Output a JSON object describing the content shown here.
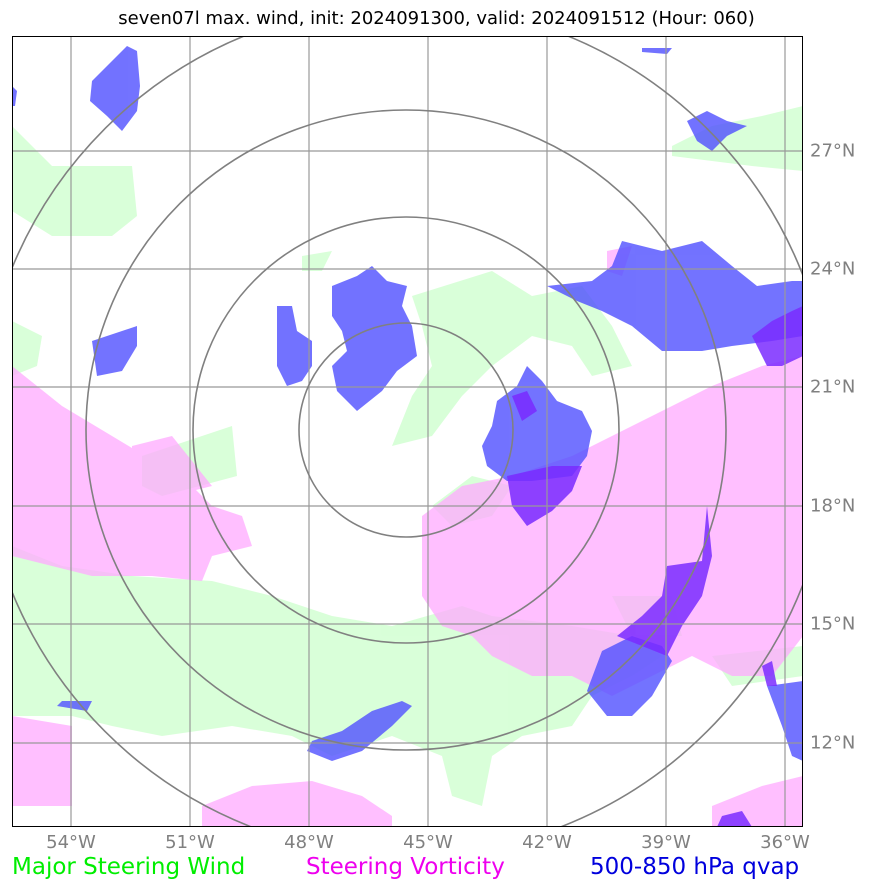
{
  "title": "seven07l max. wind, init: 2024091300, valid: 2024091512 (Hour: 060)",
  "map": {
    "lon_labels": [
      "54°W",
      "51°W",
      "48°W",
      "45°W",
      "42°W",
      "39°W",
      "36°W"
    ],
    "lat_labels": [
      "27°N",
      "24°N",
      "21°N",
      "18°N",
      "15°N",
      "12°N"
    ],
    "colors": {
      "steering_wind": "#ccffcc",
      "steering_vorticity": "#ffaaff",
      "qvap": "#5050ff",
      "qvap_strong": "#7a2bff",
      "grid": "#999999",
      "range_rings": "#808080"
    }
  },
  "legend": {
    "wind": {
      "label": "Major Steering Wind",
      "color": "#00ee00"
    },
    "vorticity": {
      "label": "Steering Vorticity",
      "color": "#ee00ee"
    },
    "qvap": {
      "label": "500-850 hPa qvap",
      "color": "#0000dd"
    }
  }
}
